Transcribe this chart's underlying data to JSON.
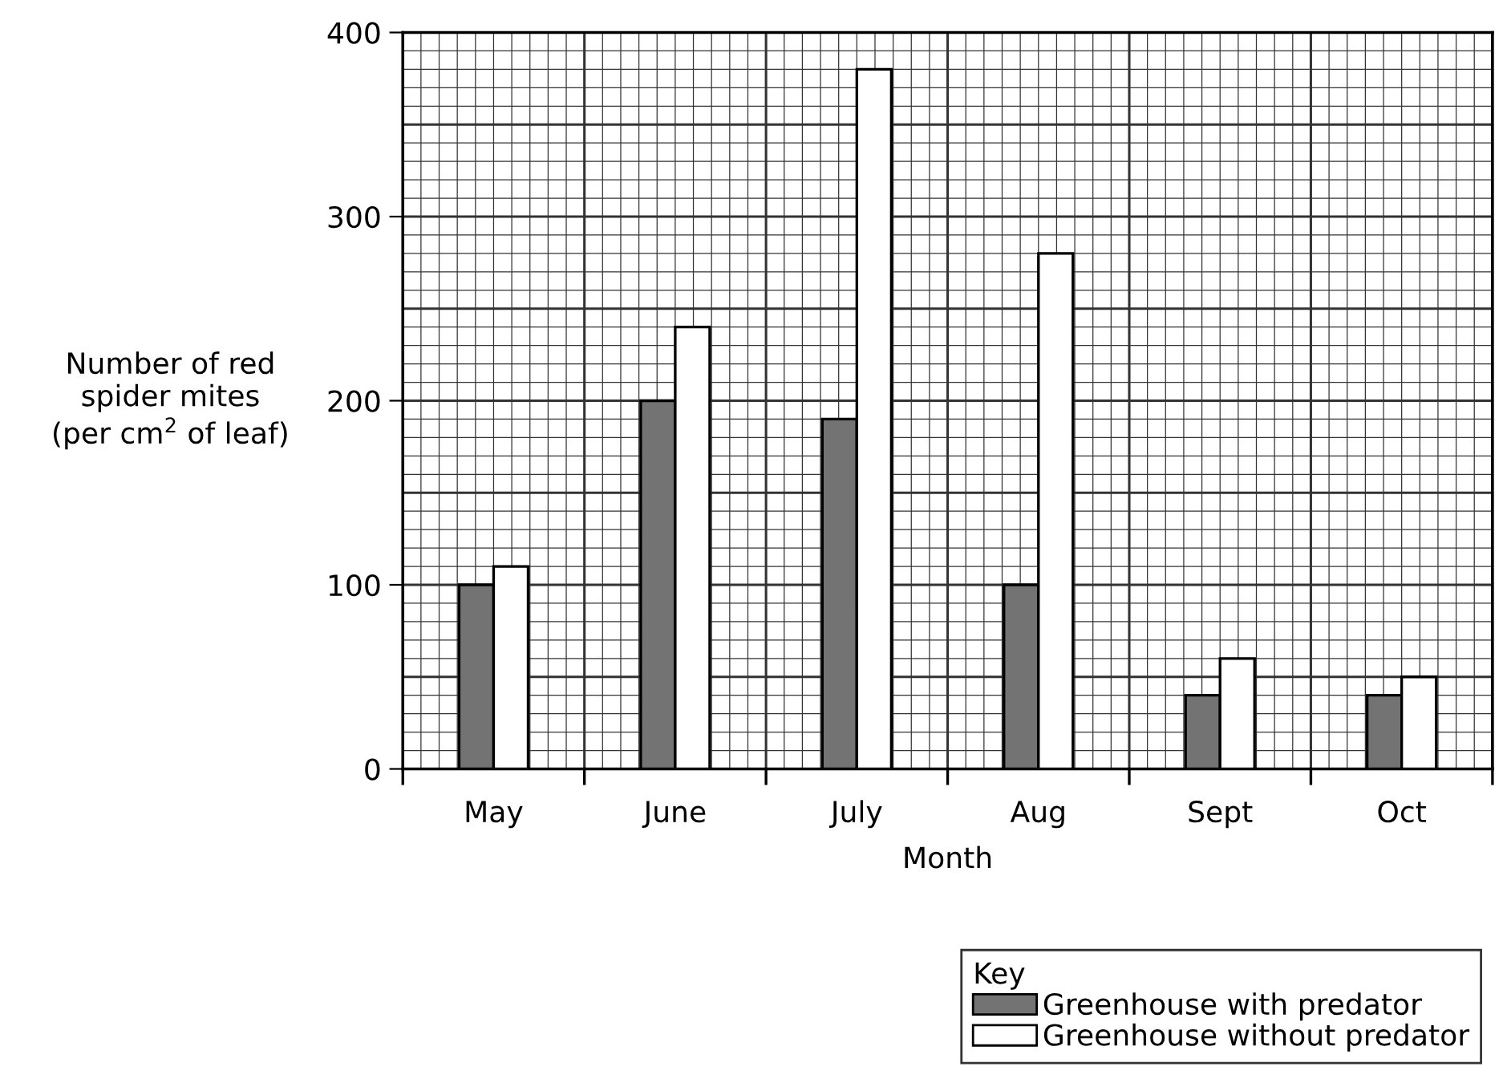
{
  "chart_data": {
    "type": "bar",
    "xlabel": "Month",
    "ylabel": "Number of red\nspider mites\n(per cm$^{2}$ of leaf)",
    "legend_title": "Key",
    "categories": [
      "May",
      "June",
      "July",
      "Aug",
      "Sept",
      "Oct"
    ],
    "series": [
      {
        "name": "Greenhouse with predator",
        "color": "#737373",
        "values": [
          100,
          200,
          190,
          100,
          40,
          40
        ]
      },
      {
        "name": "Greenhouse without predator",
        "color": "#ffffff",
        "values": [
          110,
          240,
          380,
          280,
          60,
          50
        ]
      }
    ],
    "ylim": [
      0,
      400
    ],
    "yticks": [
      0,
      100,
      200,
      300,
      400
    ],
    "grid": true,
    "legend": "bottom right"
  }
}
